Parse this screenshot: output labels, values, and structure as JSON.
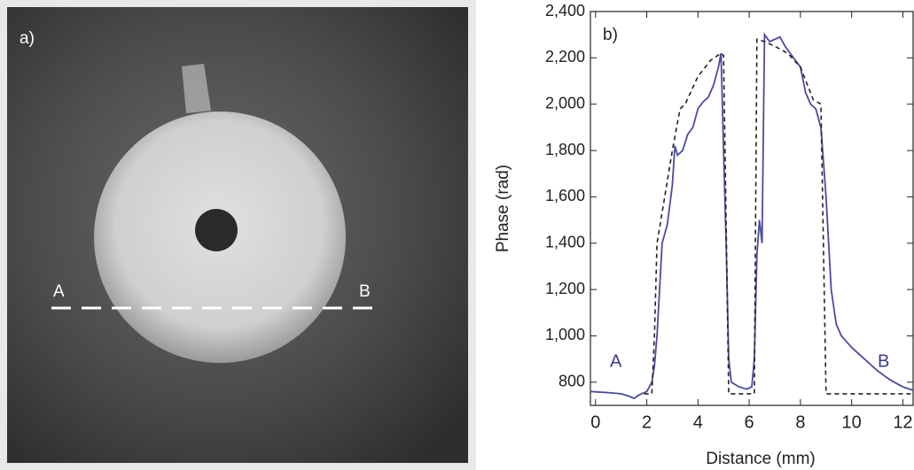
{
  "image": {
    "label": "a)",
    "markers": [
      "A",
      "B"
    ]
  },
  "chart_data": {
    "type": "line",
    "panel_label": "b)",
    "x_label": "Distance (mm)",
    "y_label": "Phase (rad)",
    "annotations": [
      "A",
      "B"
    ],
    "xlim": [
      -0.2,
      12.4
    ],
    "ylim": [
      700,
      2400
    ],
    "xticks": [
      0,
      2,
      4,
      6,
      8,
      10,
      12
    ],
    "yticks": [
      800,
      {
        "value": 1000,
        "label": "1,000"
      },
      {
        "value": 1200,
        "label": "1,200"
      },
      {
        "value": 1400,
        "label": "1,400"
      },
      {
        "value": 1600,
        "label": "1,600"
      },
      {
        "value": 1800,
        "label": "1,800"
      },
      {
        "value": 2000,
        "label": "2,000"
      },
      {
        "value": 2200,
        "label": "2,200"
      },
      {
        "value": 2400,
        "label": "2,400"
      }
    ],
    "series": [
      {
        "color": "#4b4ba0",
        "style": "solid",
        "x": [
          -0.2,
          0.5,
          1,
          1.3,
          1.5,
          1.7,
          2,
          2.2,
          2.3,
          2.4,
          2.5,
          2.6,
          2.8,
          3.0,
          3.1,
          3.2,
          3.4,
          3.6,
          3.8,
          4.0,
          4.2,
          4.4,
          4.6,
          4.8,
          4.9,
          5.0,
          5.1,
          5.2,
          5.3,
          5.6,
          5.9,
          6.1,
          6.2,
          6.3,
          6.4,
          6.5,
          6.6,
          6.8,
          7.0,
          7.2,
          7.4,
          7.6,
          7.8,
          8.0,
          8.2,
          8.4,
          8.6,
          8.8,
          9.0,
          9.2,
          9.4,
          9.6,
          10,
          10.5,
          11,
          11.5,
          12,
          12.4
        ],
        "values": [
          760,
          755,
          750,
          740,
          730,
          745,
          760,
          800,
          870,
          1000,
          1200,
          1400,
          1480,
          1650,
          1820,
          1780,
          1800,
          1870,
          1900,
          1980,
          2010,
          2030,
          2080,
          2160,
          2220,
          1800,
          1400,
          900,
          800,
          780,
          770,
          780,
          900,
          1350,
          1500,
          1400,
          2300,
          2270,
          2280,
          2290,
          2250,
          2220,
          2190,
          2160,
          2050,
          2000,
          1980,
          1900,
          1600,
          1200,
          1050,
          1000,
          950,
          900,
          850,
          810,
          780,
          765
        ]
      },
      {
        "color": "#222222",
        "style": "dashed",
        "x": [
          1.9,
          2.2,
          2.3,
          2.4,
          2.7,
          3.0,
          3.3,
          3.5,
          4.0,
          4.5,
          4.9,
          5.0,
          5.2,
          6.2,
          6.3,
          6.6,
          7.0,
          7.5,
          8.0,
          8.5,
          8.8,
          9.0,
          12.4
        ],
        "values": [
          750,
          750,
          1000,
          1400,
          1600,
          1800,
          1980,
          2000,
          2120,
          2190,
          2220,
          2210,
          750,
          750,
          2280,
          2270,
          2250,
          2220,
          2160,
          2020,
          2000,
          750,
          750
        ]
      }
    ]
  }
}
